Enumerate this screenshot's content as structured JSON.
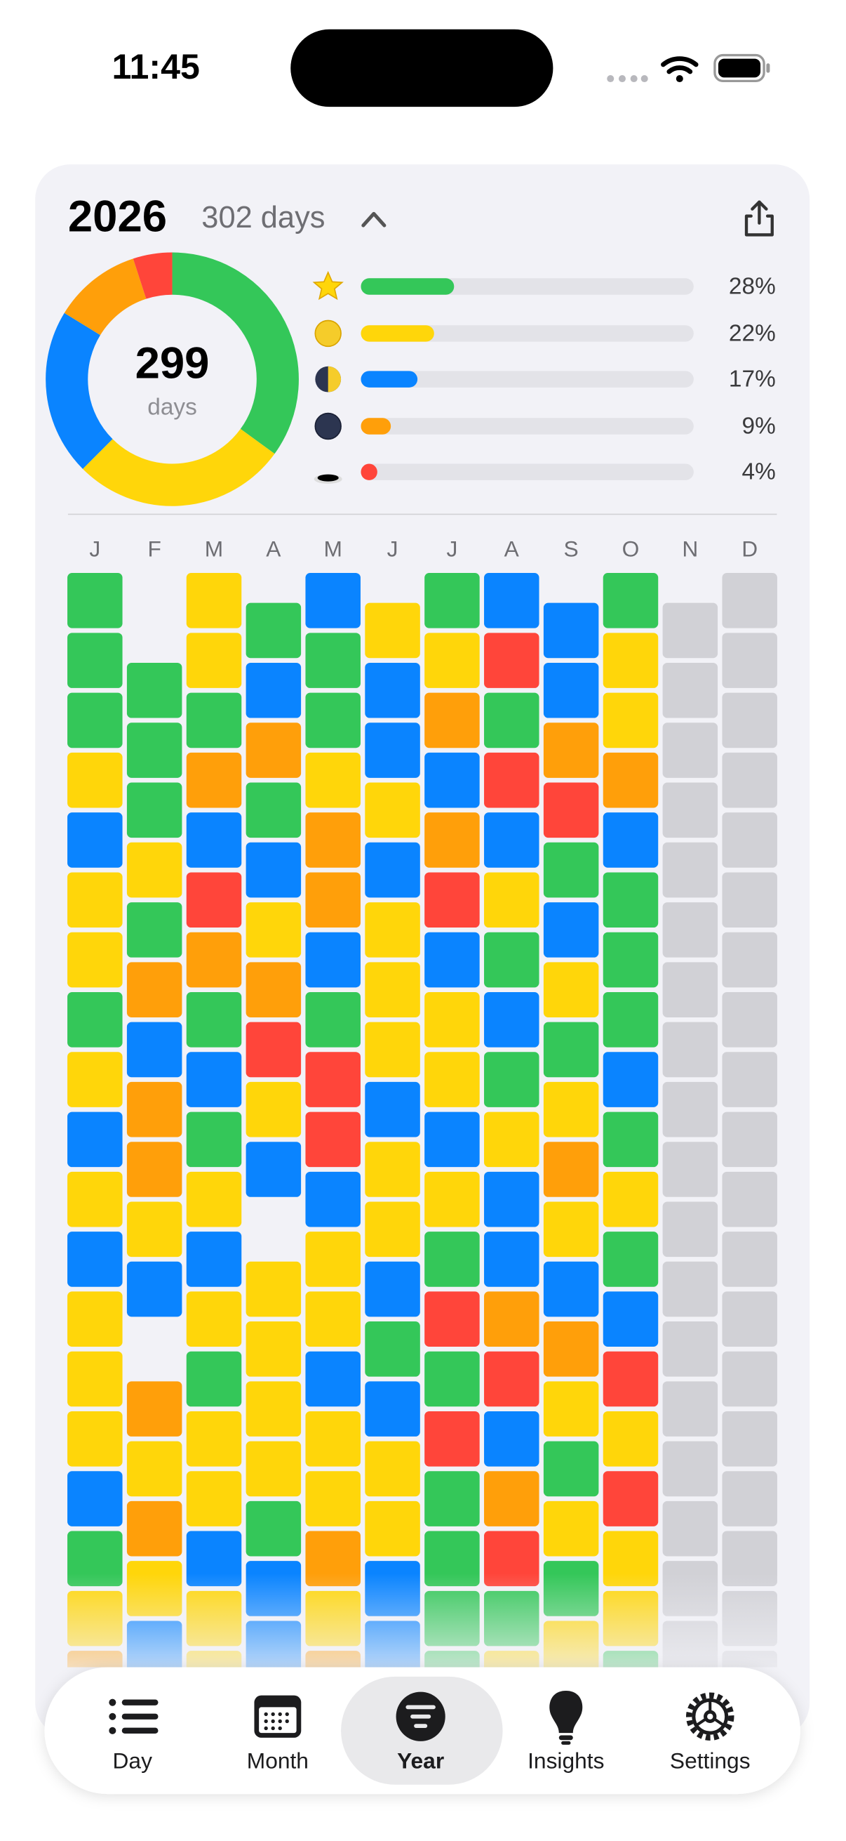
{
  "status_bar": {
    "time": "11:45"
  },
  "year_card": {
    "year": "2026",
    "tracked": "302 days",
    "total": {
      "value": "299",
      "unit": "days"
    },
    "moods": {
      "colors": [
        "#34c759",
        "#ffd60a",
        "#0a84ff",
        "#ff9f0a",
        "#ff453a"
      ],
      "values": [
        28,
        22,
        17,
        9,
        4
      ],
      "value_labels": [
        "28%",
        "22%",
        "17%",
        "9%",
        "4%"
      ]
    },
    "months": [
      "J",
      "F",
      "M",
      "A",
      "M",
      "J",
      "J",
      "A",
      "S",
      "O",
      "N",
      "D"
    ],
    "palette": {
      "g": "#34c759",
      "y": "#ffd60a",
      "b": "#0a84ff",
      "o": "#ff9f0a",
      "r": "#ff453a",
      "n": "#d1d1d6"
    },
    "columns": [
      "gggybyygybybyyybgyo",
      "gggygobooybkoyoybg",
      "yygobrogbgybygyybyy",
      "gbogbyoryb yyyygbbbb",
      "bggyoobgrrbyybyyoyo",
      "ybbybyyybyybgbyybb",
      "gyoborbyybygrgrgggg",
      "brgrbygbgybborborgy",
      "bborgbygyoyboygygy",
      "gyyobgggbgygbryryyg",
      "nnnnnnnnnnnnnnnnnn",
      "nnnnnnnnnnnnnnnnnnn"
    ]
  },
  "tab_bar": {
    "tabs": [
      "Day",
      "Month",
      "Year",
      "Insights",
      "Settings"
    ]
  }
}
